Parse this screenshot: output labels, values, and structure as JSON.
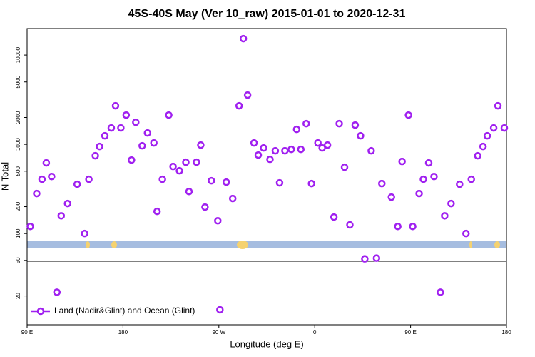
{
  "chart_data": {
    "type": "scatter",
    "title": "45S-40S May (Ver 10_raw)   2015-01-01 to 2020-12-31",
    "x_label": "Longitude (deg E)",
    "y_label": "N Total",
    "log_y": true,
    "xlim": [
      90,
      540
    ],
    "ylim": [
      9.5,
      19800
    ],
    "xticks": [
      {
        "value": 90,
        "label": "90 E"
      },
      {
        "value": 180,
        "label": "180"
      },
      {
        "value": 270,
        "label": "90 W"
      },
      {
        "value": 360,
        "label": "0"
      },
      {
        "value": 450,
        "label": "90 E"
      },
      {
        "value": 540,
        "label": "180"
      }
    ],
    "yticks": [
      20,
      50,
      100,
      200,
      500,
      1000,
      2000,
      5000,
      10000
    ],
    "legend_position": "bottom-left",
    "series": [
      {
        "name": "Land (Nadir&Glint) and Ocean (Glint)",
        "color": "#a020f0",
        "x": [
          93,
          99,
          104,
          108,
          113,
          118,
          122,
          128,
          137,
          144,
          148,
          154,
          158,
          163,
          169,
          173,
          178,
          183,
          188,
          192,
          198,
          203,
          209,
          212,
          217,
          223,
          227,
          233,
          239,
          242,
          249,
          253,
          257,
          263,
          269,
          271,
          277,
          283,
          289,
          293,
          297,
          303,
          307,
          312,
          318,
          323,
          327,
          332,
          338,
          343,
          347,
          352,
          357,
          363,
          367,
          372,
          378,
          383,
          388,
          393,
          398,
          403,
          407,
          413,
          418,
          423,
          432,
          438,
          442,
          448,
          452,
          458,
          462,
          467,
          472,
          478,
          482,
          488,
          496,
          502,
          507,
          513,
          518,
          522,
          528,
          532,
          538
        ],
        "values": [
          120,
          281,
          406,
          620,
          436,
          22,
          158,
          217,
          357,
          100,
          406,
          745,
          946,
          1247,
          1528,
          2704,
          1528,
          2128,
          667,
          1770,
          964,
          1343,
          1038,
          177,
          406,
          2128,
          565,
          506,
          631,
          296,
          631,
          982,
          198,
          391,
          139,
          14,
          377,
          247,
          2704,
          15280,
          3565,
          1038,
          759,
          912,
          679,
          847,
          370,
          847,
          879,
          1472,
          879,
          1706,
          363,
          1038,
          912,
          982,
          153,
          1706,
          555,
          125,
          1644,
          1247,
          52,
          847,
          53,
          363,
          256,
          120,
          643,
          2128,
          120,
          281,
          406,
          620,
          436,
          22,
          158,
          217,
          357,
          100,
          406,
          745,
          946,
          1247,
          1528,
          2704,
          1528
        ]
      }
    ]
  }
}
